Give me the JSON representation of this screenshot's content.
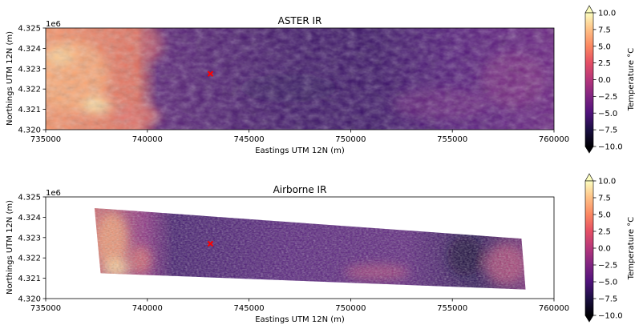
{
  "chart_data": [
    {
      "type": "heatmap",
      "title": "ASTER IR",
      "xlabel": "Eastings UTM 12N (m)",
      "ylabel": "Northings UTM 12N (m)",
      "y_offset_label": "1e6",
      "xlim": [
        735000,
        760000
      ],
      "ylim": [
        4320000,
        4325000
      ],
      "x_ticks": [
        735000,
        740000,
        745000,
        750000,
        755000,
        760000
      ],
      "x_tick_labels": [
        "735000",
        "740000",
        "745000",
        "750000",
        "755000",
        "760000"
      ],
      "y_ticks": [
        4320000,
        4321000,
        4322000,
        4323000,
        4324000,
        4325000
      ],
      "y_tick_labels": [
        "4.320",
        "4.321",
        "4.322",
        "4.323",
        "4.324",
        "4.325"
      ],
      "colormap": "magma",
      "marker": {
        "x": 743100,
        "y": 4322750,
        "symbol": "x",
        "color": "#ff0000"
      },
      "colorbar": {
        "label": "Temperature °C",
        "range": [
          -10,
          10
        ],
        "extend": "both",
        "ticks": [
          10,
          7.5,
          5,
          2.5,
          0,
          -2.5,
          -5,
          -7.5,
          -10
        ],
        "tick_labels": [
          "10.0",
          "7.5",
          "5.0",
          "2.5",
          "0.0",
          "−2.5",
          "−5.0",
          "−7.5",
          "−10.0"
        ]
      }
    },
    {
      "type": "heatmap",
      "title": "Airborne IR",
      "xlabel": "Eastings UTM 12N (m)",
      "ylabel": "Northings UTM 12N (m)",
      "y_offset_label": "1e6",
      "xlim": [
        735000,
        760000
      ],
      "ylim": [
        4320000,
        4325000
      ],
      "x_ticks": [
        735000,
        740000,
        745000,
        750000,
        755000,
        760000
      ],
      "x_tick_labels": [
        "735000",
        "740000",
        "745000",
        "750000",
        "755000",
        "760000"
      ],
      "y_ticks": [
        4320000,
        4321000,
        4322000,
        4323000,
        4324000,
        4325000
      ],
      "y_tick_labels": [
        "4.320",
        "4.321",
        "4.322",
        "4.323",
        "4.324",
        "4.325"
      ],
      "colormap": "magma",
      "marker": {
        "x": 743100,
        "y": 4322700,
        "symbol": "x",
        "color": "#ff0000"
      },
      "swath_corners": [
        [
          737400,
          4324450
        ],
        [
          758400,
          4322950
        ],
        [
          758600,
          4320450
        ],
        [
          737700,
          4321250
        ]
      ],
      "colorbar": {
        "label": "Temperature °C",
        "range": [
          -10,
          10
        ],
        "extend": "both",
        "ticks": [
          10,
          7.5,
          5,
          2.5,
          0,
          -2.5,
          -5,
          -7.5,
          -10
        ],
        "tick_labels": [
          "10.0",
          "7.5",
          "5.0",
          "2.5",
          "0.0",
          "−2.5",
          "−5.0",
          "−7.5",
          "−10.0"
        ]
      }
    }
  ]
}
